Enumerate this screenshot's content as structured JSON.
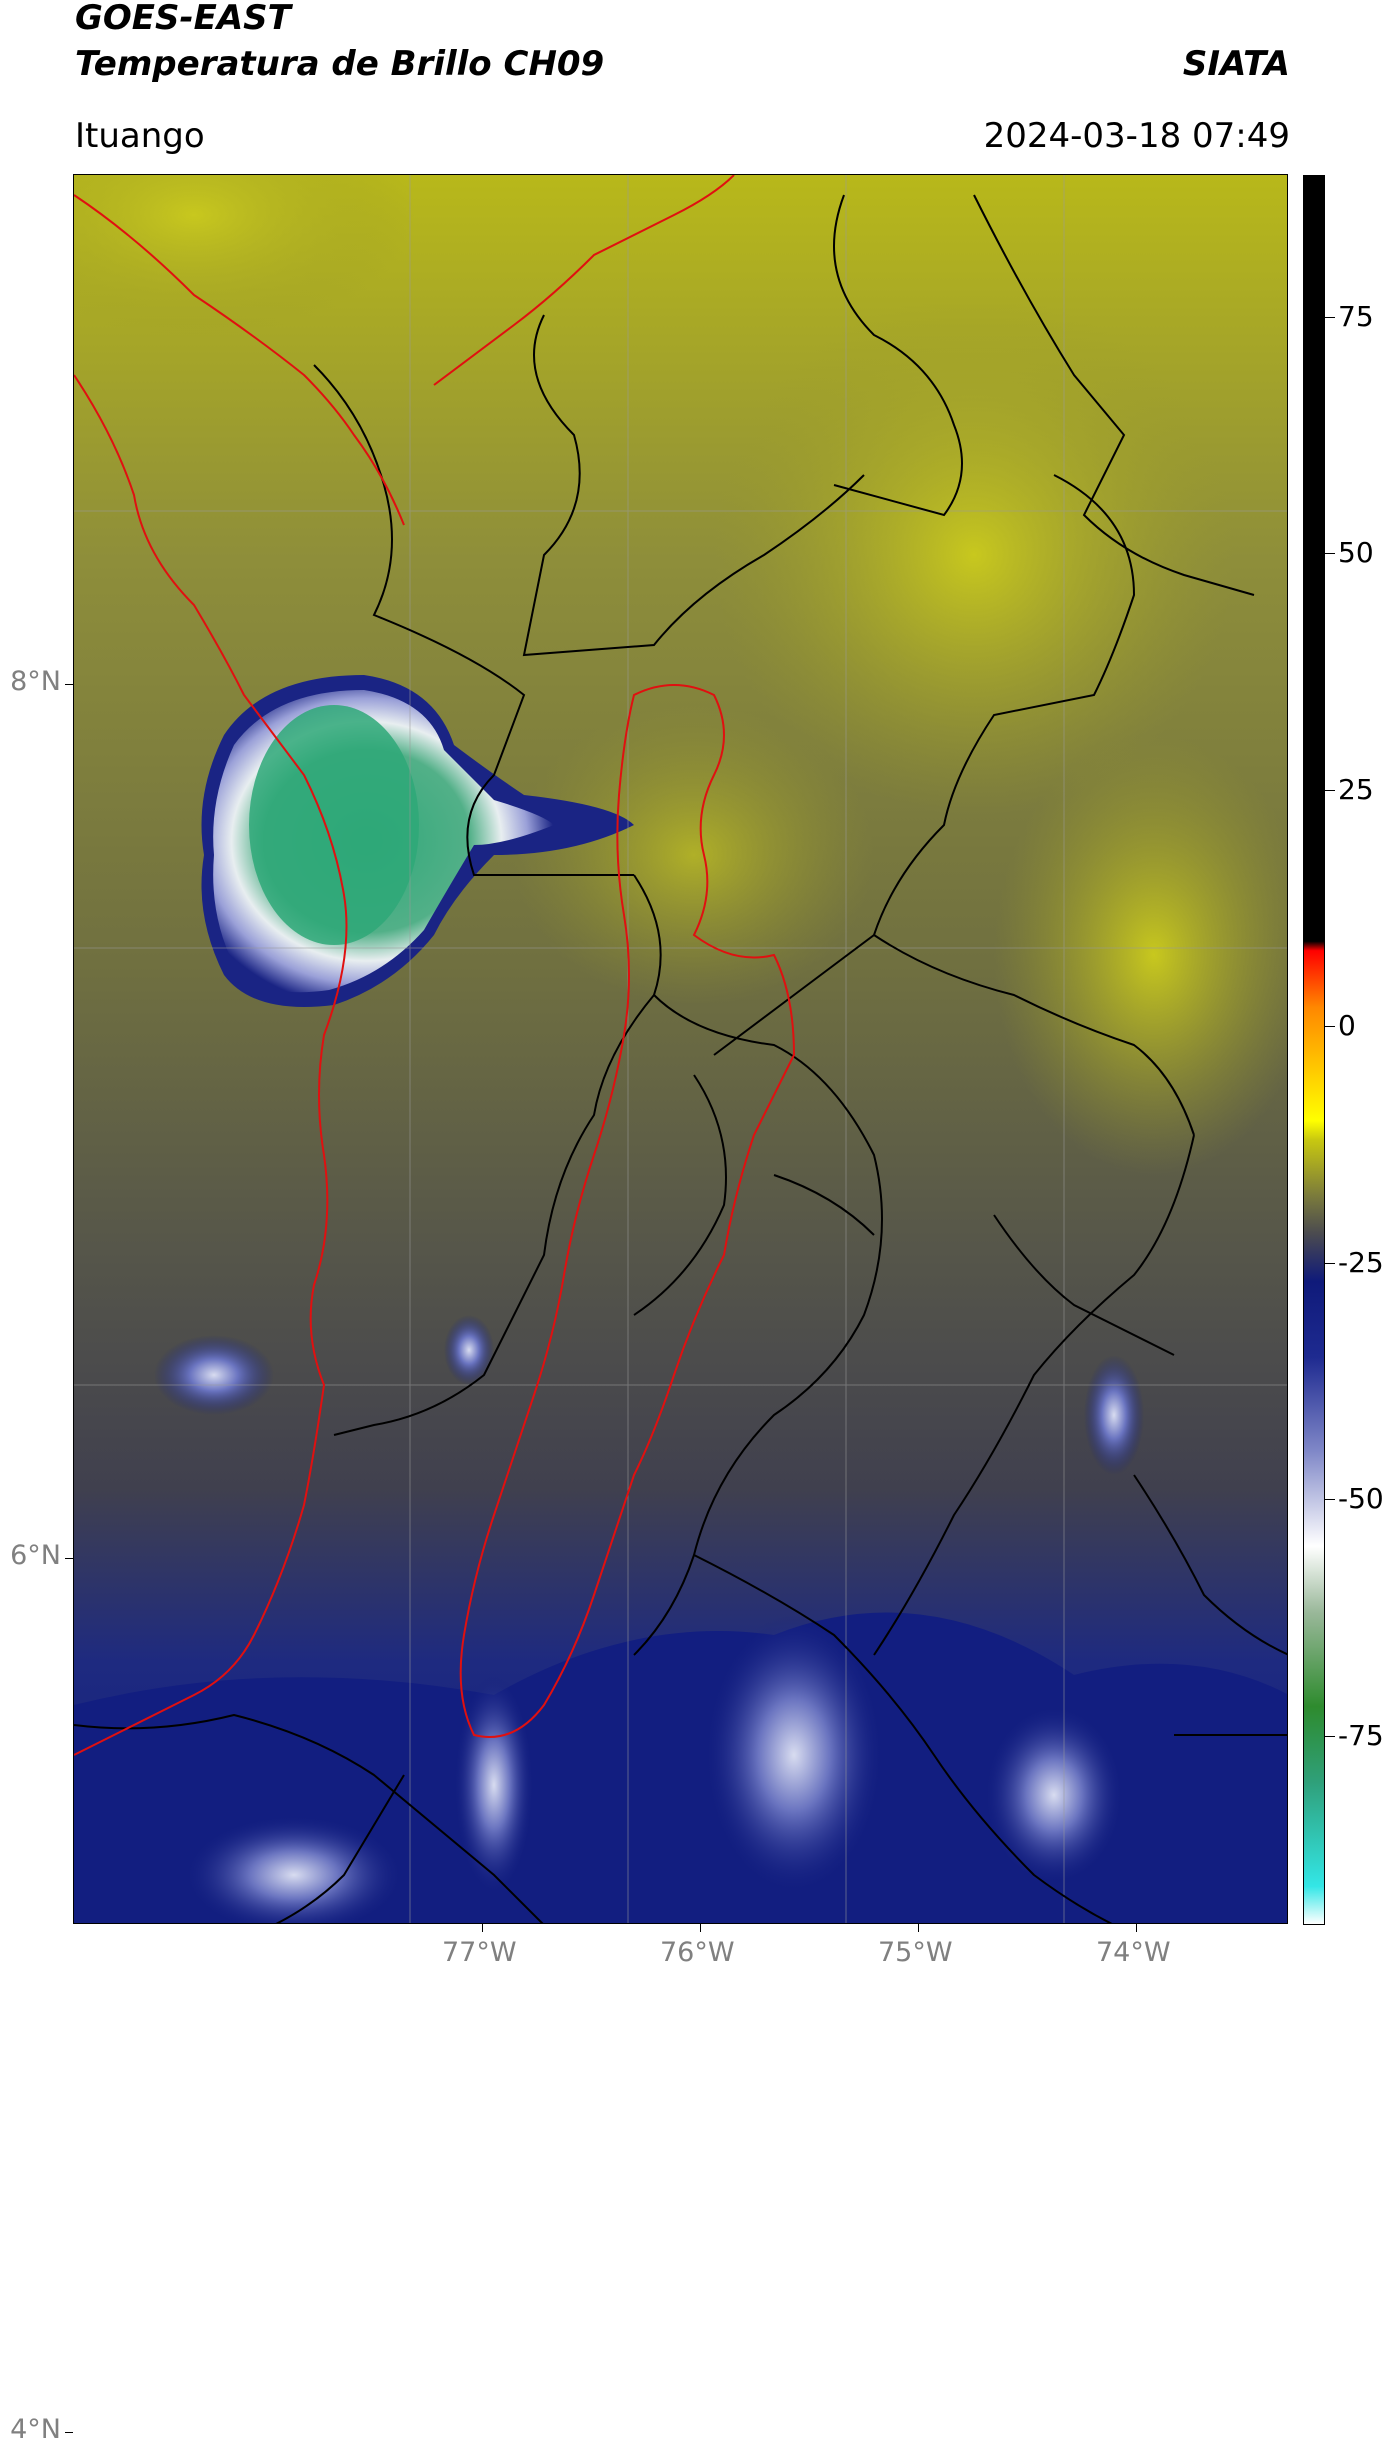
{
  "header": {
    "satellite": "GOES-EAST",
    "product": "Temperatura de Brillo CH09",
    "organization": "SIATA",
    "region": "Ituango",
    "timestamp": "2024-03-18 07:49"
  },
  "axes": {
    "lat_ticks": [
      {
        "label": "8°N",
        "value": 8
      },
      {
        "label": "6°N",
        "value": 6
      },
      {
        "label": "4°N",
        "value": 4
      }
    ],
    "lon_ticks": [
      {
        "label": "77°W",
        "value": -77
      },
      {
        "label": "76°W",
        "value": -76
      },
      {
        "label": "75°W",
        "value": -75
      },
      {
        "label": "74°W",
        "value": -74
      }
    ]
  },
  "colorbar": {
    "unit_hint": "°C",
    "range": [
      -95,
      90
    ],
    "ticks": [
      {
        "label": "75",
        "value": 75
      },
      {
        "label": "50",
        "value": 50
      },
      {
        "label": "25",
        "value": 25
      },
      {
        "label": "0",
        "value": 0
      },
      {
        "label": "-25",
        "value": -25
      },
      {
        "label": "-50",
        "value": -50
      },
      {
        "label": "-75",
        "value": -75
      }
    ],
    "colors": [
      "#ffffff",
      "#33e6e6",
      "#2fa07a",
      "#2e8b2e",
      "#9ab89a",
      "#ffffff",
      "#8088c8",
      "#1e2a90",
      "#0f1a7a",
      "#4a4a50",
      "#7a7a3c",
      "#c8c810",
      "#ffff00",
      "#ff8800",
      "#ff0000",
      "#000000"
    ]
  },
  "map_colors": {
    "warm_land": "#8a8a3a",
    "bright_yellow": "#c2c21a",
    "gray_cloud": "#4c4c56",
    "deep_blue": "#101c7e",
    "white_cloud": "#ececf5",
    "green_core": "#2fa879",
    "boundary_black": "#000000",
    "boundary_red": "#e01010",
    "gridline": "#9a9a9a"
  }
}
